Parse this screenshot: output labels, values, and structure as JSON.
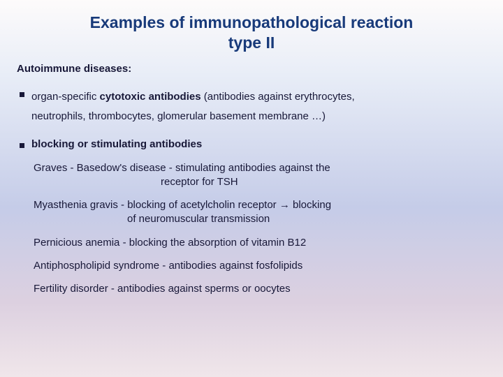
{
  "colors": {
    "title": "#183a7a",
    "text": "#181838",
    "bullet": "#181838",
    "bg_top": "#fdfbfb",
    "bg_mid": "#c5cce8",
    "bg_bot": "#f0e6ea"
  },
  "title_line1": "Examples of immunopathological reaction",
  "title_line2": "type II",
  "subtitle": "Autoimmune diseases:",
  "bullet1_prefix": "organ-specific ",
  "bullet1_bold": "cytotoxic antibodies",
  "bullet1_rest": " (antibodies against erythrocytes,",
  "bullet1_line2": "neutrophils, thrombocytes, glomerular basement membrane …)",
  "bullet2_title": "blocking or stimulating antibodies",
  "ex1_a": "Graves - Basedow's disease - stimulating antibodies against the",
  "ex1_b": "receptor for TSH",
  "ex2_a": "Myasthenia gravis - blocking  of acetylcholin receptor → blocking",
  "ex2_b": "of neuromuscular transmission",
  "ex3": "Pernicious anemia - blocking the absorption of vitamin B12",
  "ex4": "Antiphospholipid syndrome - antibodies against fosfolipids",
  "ex5": "Fertility disorder - antibodies against sperms or oocytes"
}
